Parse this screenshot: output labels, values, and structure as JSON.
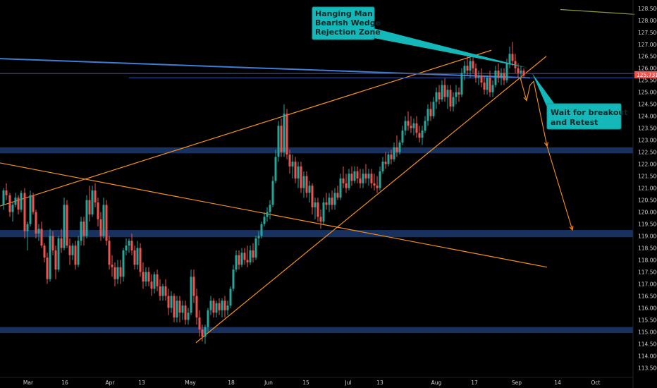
{
  "chart_data": {
    "type": "candlestick",
    "y_ticks": [
      "128.500",
      "128.000",
      "127.500",
      "127.000",
      "126.500",
      "126.000",
      "125.500",
      "125.000",
      "124.500",
      "124.000",
      "123.500",
      "123.000",
      "122.500",
      "122.000",
      "121.500",
      "121.000",
      "120.500",
      "120.000",
      "119.500",
      "119.000",
      "118.500",
      "118.000",
      "117.500",
      "117.000",
      "116.500",
      "116.000",
      "115.500",
      "115.000",
      "114.500",
      "114.000",
      "113.500"
    ],
    "x_ticks": [
      "Mar",
      "16",
      "Apr",
      "13",
      "May",
      "18",
      "Jun",
      "15",
      "Jul",
      "13",
      "Aug",
      "17",
      "Sep",
      "14",
      "Oct"
    ],
    "ylim": [
      113.1,
      128.7
    ],
    "current_price": "125.731",
    "colors": {
      "up": "#26a69a",
      "down": "#ef5350",
      "trendline": "#f7931a",
      "zone": "#1c3a6e",
      "note_bg": "#14b8b8",
      "price_tag": "#ef5350",
      "blue_line": "#3b7dd8"
    },
    "zones": [
      {
        "top": 122.7,
        "bottom": 122.45
      },
      {
        "top": 119.25,
        "bottom": 118.95
      },
      {
        "top": 115.2,
        "bottom": 114.95
      }
    ],
    "lines": [
      {
        "from": [
          0,
          120.25
        ],
        "to": [
          697,
          126.75
        ],
        "color": "#f7931a"
      },
      {
        "from": [
          0,
          122.05
        ],
        "to": [
          776,
          117.7
        ],
        "color": "#f7931a"
      },
      {
        "from": [
          278,
          114.55
        ],
        "to": [
          775,
          126.5
        ],
        "color": "#f7931a"
      },
      {
        "from": [
          0,
          126.4
        ],
        "to": [
          752,
          125.6
        ],
        "color": "#3b7dd8"
      },
      {
        "from": [
          183,
          125.6
        ],
        "to": [
          932,
          125.6
        ],
        "color": "#2a4d9a"
      },
      {
        "from": [
          0,
          125.78
        ],
        "to": [
          932,
          125.78
        ],
        "color": "#4a4a6a"
      },
      {
        "from": [
          795,
          128.45
        ],
        "to": [
          900,
          128.25
        ],
        "color": "#8c9b3a"
      }
    ],
    "projection_arrows": [
      {
        "points": [
          [
            738,
            125.6
          ],
          [
            747,
            124.65
          ],
          [
            752,
            125.3
          ],
          [
            757,
            125.45
          ],
          [
            776,
            122.75
          ],
          [
            812,
            119.25
          ]
        ],
        "color": "#f7931a"
      }
    ],
    "candles": [
      [
        5,
        120.3,
        121.0,
        120.1,
        120.9
      ],
      [
        9,
        120.9,
        121.2,
        120.5,
        120.7
      ],
      [
        14,
        120.7,
        120.8,
        119.8,
        120.0
      ],
      [
        18,
        120.0,
        120.4,
        119.6,
        120.3
      ],
      [
        22,
        120.3,
        120.8,
        120.2,
        120.6
      ],
      [
        26,
        120.6,
        120.7,
        119.9,
        120.1
      ],
      [
        30,
        120.1,
        120.9,
        120.0,
        120.8
      ],
      [
        35,
        120.8,
        121.0,
        118.9,
        119.2
      ],
      [
        39,
        119.2,
        119.6,
        118.4,
        119.5
      ],
      [
        43,
        119.5,
        120.9,
        119.4,
        120.7
      ],
      [
        47,
        120.7,
        120.8,
        119.9,
        120.0
      ],
      [
        51,
        120.0,
        120.1,
        118.9,
        119.1
      ],
      [
        55,
        119.1,
        119.5,
        118.8,
        119.3
      ],
      [
        59,
        119.3,
        119.6,
        118.5,
        118.6
      ],
      [
        63,
        118.6,
        118.7,
        117.9,
        118.1
      ],
      [
        67,
        118.1,
        118.3,
        117.0,
        117.2
      ],
      [
        71,
        117.2,
        119.3,
        117.1,
        119.0
      ],
      [
        75,
        119.0,
        119.2,
        118.2,
        118.4
      ],
      [
        79,
        118.4,
        118.6,
        117.2,
        117.6
      ],
      [
        83,
        117.6,
        119.0,
        117.5,
        118.9
      ],
      [
        87,
        118.9,
        119.3,
        118.3,
        118.5
      ],
      [
        91,
        118.5,
        120.6,
        118.4,
        120.3
      ],
      [
        95,
        120.3,
        120.5,
        118.5,
        118.6
      ],
      [
        99,
        118.6,
        118.9,
        117.8,
        118.2
      ],
      [
        103,
        118.2,
        118.7,
        118.0,
        118.6
      ],
      [
        107,
        118.6,
        118.8,
        117.6,
        117.8
      ],
      [
        111,
        117.8,
        119.0,
        117.7,
        118.8
      ],
      [
        115,
        118.8,
        119.8,
        118.6,
        119.6
      ],
      [
        119,
        119.6,
        119.8,
        118.6,
        119.0
      ],
      [
        123,
        119.0,
        120.7,
        118.9,
        120.5
      ],
      [
        127,
        120.5,
        121.1,
        119.6,
        119.9
      ],
      [
        131,
        119.9,
        121.1,
        119.8,
        120.9
      ],
      [
        135,
        120.9,
        121.2,
        120.2,
        120.4
      ],
      [
        139,
        120.4,
        120.6,
        119.4,
        119.7
      ],
      [
        143,
        119.7,
        120.0,
        118.8,
        119.0
      ],
      [
        147,
        119.0,
        120.6,
        118.9,
        120.3
      ],
      [
        151,
        120.3,
        120.5,
        118.6,
        118.8
      ],
      [
        155,
        118.8,
        119.0,
        117.6,
        117.8
      ],
      [
        159,
        117.8,
        118.2,
        117.3,
        117.7
      ],
      [
        163,
        117.7,
        117.9,
        116.9,
        117.2
      ],
      [
        167,
        117.2,
        118.0,
        117.0,
        117.7
      ],
      [
        171,
        117.7,
        118.0,
        117.0,
        117.3
      ],
      [
        175,
        117.3,
        118.5,
        117.1,
        118.4
      ],
      [
        179,
        118.4,
        118.9,
        118.2,
        118.6
      ],
      [
        183,
        118.6,
        118.9,
        118.3,
        118.8
      ],
      [
        187,
        118.8,
        119.1,
        118.2,
        118.4
      ],
      [
        191,
        118.4,
        118.6,
        117.6,
        117.8
      ],
      [
        195,
        117.8,
        118.8,
        117.6,
        118.5
      ],
      [
        199,
        118.5,
        118.7,
        117.3,
        117.5
      ],
      [
        203,
        117.5,
        117.9,
        116.8,
        117.1
      ],
      [
        207,
        117.1,
        117.7,
        116.9,
        117.5
      ],
      [
        211,
        117.5,
        117.7,
        116.9,
        117.1
      ],
      [
        215,
        117.1,
        117.4,
        116.5,
        116.8
      ],
      [
        219,
        116.8,
        117.5,
        116.6,
        117.4
      ],
      [
        223,
        117.4,
        117.6,
        116.7,
        116.9
      ],
      [
        227,
        116.9,
        117.2,
        116.3,
        116.5
      ],
      [
        231,
        116.5,
        117.0,
        116.3,
        116.9
      ],
      [
        235,
        116.9,
        117.2,
        116.3,
        116.5
      ],
      [
        239,
        116.5,
        116.8,
        115.7,
        116.0
      ],
      [
        243,
        116.0,
        116.7,
        115.8,
        116.5
      ],
      [
        247,
        116.5,
        116.6,
        115.4,
        115.6
      ],
      [
        251,
        115.6,
        116.5,
        115.4,
        116.3
      ],
      [
        255,
        116.3,
        116.5,
        115.4,
        115.8
      ],
      [
        259,
        115.8,
        116.3,
        115.5,
        116.1
      ],
      [
        263,
        116.1,
        116.3,
        115.3,
        115.5
      ],
      [
        267,
        115.5,
        116.0,
        115.3,
        115.8
      ],
      [
        271,
        115.8,
        117.6,
        115.7,
        117.3
      ],
      [
        275,
        117.3,
        117.6,
        116.2,
        116.5
      ],
      [
        279,
        116.5,
        116.8,
        115.3,
        115.6
      ],
      [
        283,
        115.6,
        115.9,
        114.8,
        115.1
      ],
      [
        287,
        115.1,
        115.3,
        114.6,
        114.8
      ],
      [
        291,
        114.8,
        115.3,
        114.5,
        115.2
      ],
      [
        295,
        115.2,
        116.0,
        115.0,
        115.9
      ],
      [
        299,
        115.9,
        116.5,
        115.7,
        116.3
      ],
      [
        303,
        116.3,
        116.4,
        115.6,
        115.8
      ],
      [
        307,
        115.8,
        116.3,
        115.6,
        116.2
      ],
      [
        311,
        116.2,
        116.4,
        115.7,
        115.9
      ],
      [
        315,
        115.9,
        116.4,
        115.6,
        116.3
      ],
      [
        319,
        116.3,
        116.5,
        115.6,
        115.9
      ],
      [
        323,
        115.9,
        116.3,
        115.7,
        116.1
      ],
      [
        327,
        116.1,
        116.9,
        116.0,
        116.8
      ],
      [
        331,
        116.8,
        117.8,
        116.7,
        117.6
      ],
      [
        335,
        117.6,
        118.4,
        117.5,
        118.2
      ],
      [
        339,
        118.2,
        118.4,
        117.6,
        117.8
      ],
      [
        343,
        117.8,
        118.5,
        117.7,
        118.3
      ],
      [
        347,
        118.3,
        118.5,
        117.8,
        118.0
      ],
      [
        351,
        118.0,
        118.6,
        117.7,
        117.9
      ],
      [
        355,
        117.9,
        118.6,
        117.8,
        118.4
      ],
      [
        359,
        118.4,
        118.7,
        117.9,
        118.1
      ],
      [
        363,
        118.1,
        119.0,
        118.0,
        118.9
      ],
      [
        367,
        118.9,
        119.2,
        118.6,
        119.0
      ],
      [
        371,
        119.0,
        119.6,
        118.9,
        119.5
      ],
      [
        375,
        119.5,
        120.0,
        119.4,
        119.8
      ],
      [
        379,
        119.8,
        120.2,
        119.6,
        120.0
      ],
      [
        383,
        120.0,
        120.5,
        119.7,
        120.3
      ],
      [
        387,
        120.3,
        121.5,
        120.2,
        121.3
      ],
      [
        391,
        121.3,
        122.6,
        121.2,
        122.3
      ],
      [
        395,
        122.3,
        123.8,
        122.1,
        123.6
      ],
      [
        399,
        123.6,
        123.9,
        122.3,
        122.5
      ],
      [
        403,
        122.5,
        124.5,
        122.3,
        124.1
      ],
      [
        407,
        124.1,
        124.3,
        122.2,
        122.4
      ],
      [
        411,
        122.4,
        122.6,
        121.6,
        121.9
      ],
      [
        415,
        121.9,
        122.4,
        121.4,
        122.1
      ],
      [
        419,
        122.1,
        122.3,
        121.2,
        121.4
      ],
      [
        423,
        121.4,
        122.1,
        121.0,
        121.9
      ],
      [
        427,
        121.9,
        122.1,
        120.8,
        121.0
      ],
      [
        431,
        121.0,
        121.7,
        120.6,
        121.5
      ],
      [
        435,
        121.5,
        121.7,
        120.6,
        120.8
      ],
      [
        439,
        120.8,
        121.3,
        120.4,
        121.1
      ],
      [
        443,
        121.1,
        121.2,
        119.9,
        120.2
      ],
      [
        447,
        120.2,
        120.6,
        119.7,
        120.4
      ],
      [
        451,
        120.4,
        120.6,
        119.6,
        119.8
      ],
      [
        455,
        119.8,
        120.1,
        119.3,
        119.6
      ],
      [
        459,
        119.6,
        120.6,
        119.5,
        120.4
      ],
      [
        463,
        120.4,
        120.8,
        120.1,
        120.3
      ],
      [
        467,
        120.3,
        120.8,
        120.0,
        120.6
      ],
      [
        471,
        120.6,
        120.9,
        120.1,
        120.3
      ],
      [
        475,
        120.3,
        121.0,
        120.1,
        120.8
      ],
      [
        479,
        120.8,
        121.1,
        120.5,
        120.6
      ],
      [
        483,
        120.6,
        121.6,
        120.5,
        121.4
      ],
      [
        487,
        121.4,
        121.9,
        121.0,
        121.2
      ],
      [
        491,
        121.2,
        121.6,
        120.8,
        121.0
      ],
      [
        495,
        121.0,
        121.8,
        120.9,
        121.6
      ],
      [
        499,
        121.6,
        121.9,
        121.1,
        121.3
      ],
      [
        503,
        121.3,
        121.9,
        121.2,
        121.7
      ],
      [
        507,
        121.7,
        121.9,
        121.2,
        121.4
      ],
      [
        511,
        121.4,
        121.8,
        121.0,
        121.2
      ],
      [
        515,
        121.2,
        121.8,
        121.0,
        121.6
      ],
      [
        519,
        121.6,
        122.0,
        121.2,
        121.4
      ],
      [
        523,
        121.4,
        121.8,
        121.1,
        121.6
      ],
      [
        527,
        121.6,
        121.8,
        121.0,
        121.2
      ],
      [
        531,
        121.2,
        121.6,
        120.9,
        121.1
      ],
      [
        535,
        121.1,
        121.5,
        120.8,
        121.0
      ],
      [
        539,
        121.0,
        121.9,
        120.9,
        121.7
      ],
      [
        543,
        121.7,
        122.3,
        121.6,
        122.1
      ],
      [
        547,
        122.1,
        122.5,
        121.8,
        122.0
      ],
      [
        551,
        122.0,
        122.5,
        121.9,
        122.4
      ],
      [
        555,
        122.4,
        122.6,
        122.0,
        122.2
      ],
      [
        559,
        122.2,
        122.9,
        122.1,
        122.7
      ],
      [
        563,
        122.7,
        123.2,
        122.3,
        122.5
      ],
      [
        567,
        122.5,
        123.0,
        122.4,
        122.9
      ],
      [
        571,
        122.9,
        123.6,
        122.8,
        123.4
      ],
      [
        575,
        123.4,
        124.0,
        123.2,
        123.8
      ],
      [
        579,
        123.8,
        124.2,
        123.4,
        123.6
      ],
      [
        583,
        123.6,
        124.0,
        123.3,
        123.5
      ],
      [
        587,
        123.5,
        123.9,
        123.2,
        123.7
      ],
      [
        591,
        123.7,
        124.0,
        123.1,
        123.3
      ],
      [
        595,
        123.3,
        123.6,
        122.9,
        123.1
      ],
      [
        599,
        123.1,
        123.6,
        122.8,
        123.4
      ],
      [
        603,
        123.4,
        124.0,
        123.3,
        123.8
      ],
      [
        607,
        123.8,
        124.5,
        123.6,
        124.3
      ],
      [
        611,
        124.3,
        124.6,
        123.8,
        124.0
      ],
      [
        615,
        124.0,
        124.8,
        123.9,
        124.6
      ],
      [
        619,
        124.6,
        125.2,
        124.3,
        125.0
      ],
      [
        623,
        125.0,
        125.3,
        124.5,
        124.7
      ],
      [
        627,
        124.7,
        125.5,
        124.6,
        125.3
      ],
      [
        631,
        125.3,
        125.6,
        124.6,
        124.8
      ],
      [
        635,
        124.8,
        125.3,
        124.3,
        125.1
      ],
      [
        639,
        125.1,
        125.3,
        124.2,
        124.4
      ],
      [
        643,
        124.4,
        125.0,
        124.2,
        124.8
      ],
      [
        647,
        124.8,
        125.3,
        124.5,
        125.0
      ],
      [
        651,
        125.0,
        125.2,
        124.6,
        124.9
      ],
      [
        655,
        124.9,
        126.0,
        124.8,
        125.8
      ],
      [
        659,
        125.8,
        126.3,
        125.5,
        126.1
      ],
      [
        663,
        126.1,
        126.6,
        125.7,
        125.9
      ],
      [
        667,
        125.9,
        126.5,
        125.6,
        126.3
      ],
      [
        671,
        126.3,
        126.6,
        125.8,
        126.0
      ],
      [
        675,
        126.0,
        126.2,
        125.4,
        125.6
      ],
      [
        679,
        125.6,
        125.9,
        125.3,
        125.7
      ],
      [
        683,
        125.7,
        126.0,
        125.2,
        125.4
      ],
      [
        687,
        125.4,
        125.7,
        124.9,
        125.1
      ],
      [
        691,
        125.1,
        125.7,
        124.9,
        125.6
      ],
      [
        695,
        125.6,
        125.9,
        124.8,
        125.0
      ],
      [
        699,
        125.0,
        125.5,
        124.8,
        125.3
      ],
      [
        703,
        125.3,
        126.1,
        125.2,
        125.9
      ],
      [
        707,
        125.9,
        126.2,
        125.4,
        125.6
      ],
      [
        711,
        125.6,
        126.0,
        125.3,
        125.8
      ],
      [
        715,
        125.8,
        126.0,
        125.3,
        125.5
      ],
      [
        719,
        125.5,
        126.4,
        125.4,
        126.2
      ],
      [
        723,
        126.2,
        126.9,
        126.0,
        126.6
      ],
      [
        727,
        126.6,
        127.1,
        126.1,
        126.3
      ],
      [
        731,
        126.3,
        126.6,
        125.8,
        126.0
      ],
      [
        735,
        126.0,
        126.2,
        125.6,
        125.8
      ],
      [
        739,
        125.8,
        126.1,
        125.5,
        125.9
      ],
      [
        743,
        125.9,
        126.0,
        125.6,
        125.7
      ]
    ]
  },
  "annotations": {
    "note1": [
      "Hanging Man",
      "Bearish Wedge",
      "Rejection Zone"
    ],
    "note2": [
      "Wait for breakout",
      "and Retest"
    ]
  }
}
